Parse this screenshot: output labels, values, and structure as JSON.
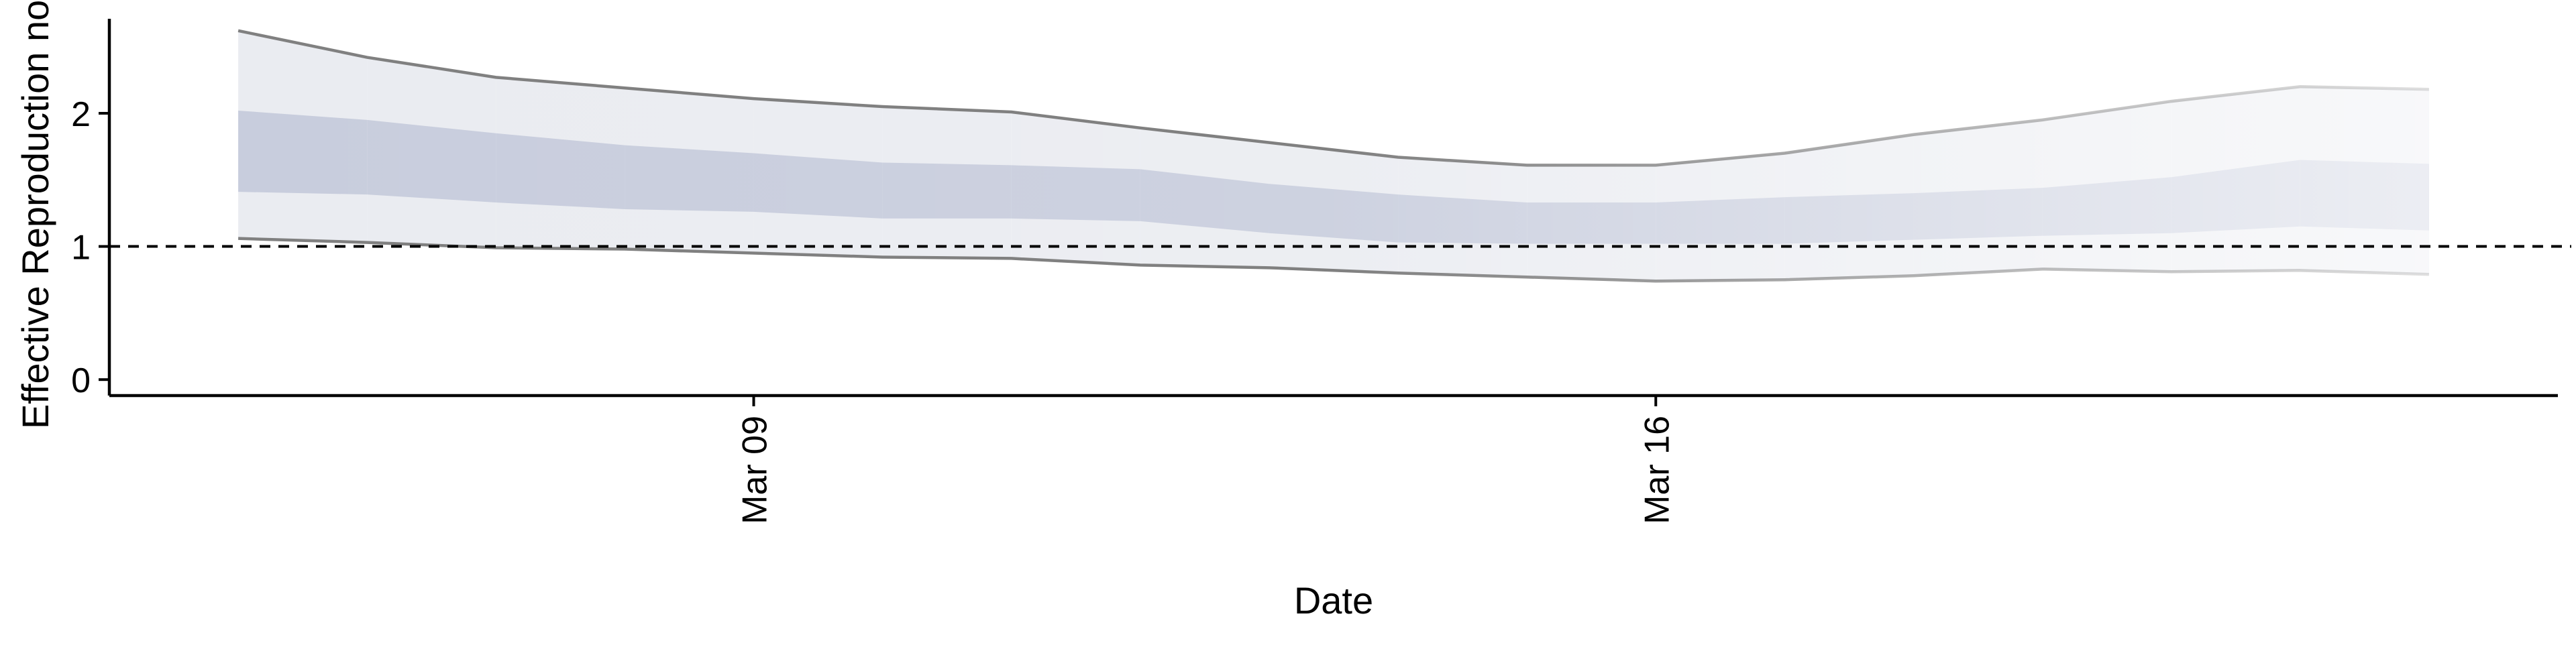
{
  "chart_data": {
    "type": "area",
    "xlabel": "Date",
    "ylabel": "Effective Reproduction no.",
    "x_ticks": [
      {
        "label": "Mar 09",
        "date": "2020-03-09"
      },
      {
        "label": "Mar 16",
        "date": "2020-03-16"
      }
    ],
    "y_ticks": [
      0,
      1,
      2
    ],
    "ylim": [
      -0.12,
      2.75
    ],
    "xlim": [
      "2020-03-04",
      "2020-03-23"
    ],
    "reference_line": {
      "y": 1,
      "style": "dashed"
    },
    "grid": false,
    "x": [
      "2020-03-05",
      "2020-03-06",
      "2020-03-07",
      "2020-03-08",
      "2020-03-09",
      "2020-03-10",
      "2020-03-11",
      "2020-03-12",
      "2020-03-13",
      "2020-03-14",
      "2020-03-15",
      "2020-03-16",
      "2020-03-17",
      "2020-03-18",
      "2020-03-19",
      "2020-03-20",
      "2020-03-21",
      "2020-03-22"
    ],
    "series": [
      {
        "band": "outer",
        "lower": [
          1.06,
          1.03,
          0.99,
          0.98,
          0.95,
          0.92,
          0.91,
          0.86,
          0.84,
          0.8,
          0.77,
          0.74,
          0.75,
          0.78,
          0.83,
          0.81,
          0.82,
          0.79
        ],
        "upper": [
          2.62,
          2.42,
          2.27,
          2.19,
          2.11,
          2.05,
          2.01,
          1.89,
          1.78,
          1.67,
          1.61,
          1.61,
          1.7,
          1.84,
          1.95,
          2.09,
          2.2,
          2.18
        ]
      },
      {
        "band": "inner",
        "lower": [
          1.41,
          1.39,
          1.33,
          1.28,
          1.26,
          1.21,
          1.21,
          1.19,
          1.1,
          1.03,
          1.02,
          1.02,
          1.02,
          1.05,
          1.08,
          1.1,
          1.15,
          1.12
        ],
        "upper": [
          2.02,
          1.95,
          1.85,
          1.76,
          1.7,
          1.63,
          1.61,
          1.58,
          1.47,
          1.39,
          1.33,
          1.33,
          1.37,
          1.4,
          1.44,
          1.52,
          1.65,
          1.62
        ]
      }
    ],
    "colors": {
      "outer_band": "#eaecf1",
      "inner_band": "#c8cddd",
      "bound_line": "#808080",
      "reference_line": "#000000",
      "axis": "#000000"
    }
  }
}
